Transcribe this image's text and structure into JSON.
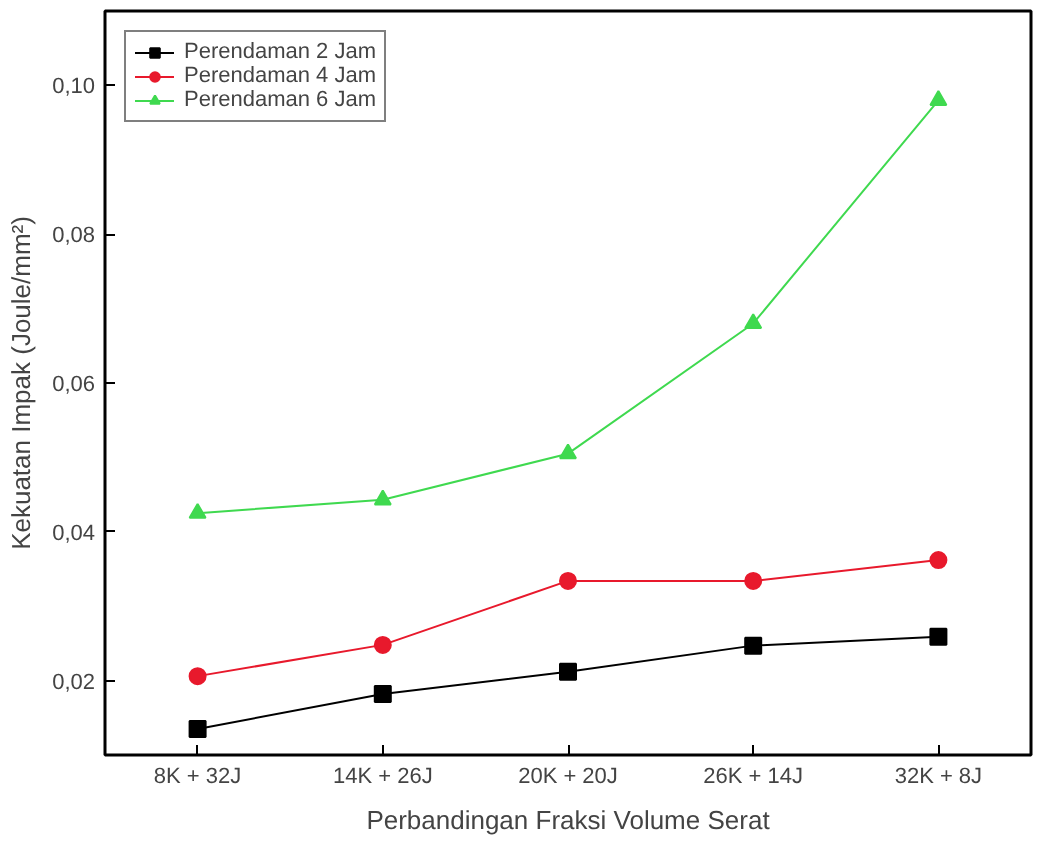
{
  "chart_data": {
    "type": "line",
    "xlabel": "Perbandingan Fraksi Volume Serat",
    "ylabel": "Kekuatan Impak (Joule/mm²)",
    "categories": [
      "8K + 32J",
      "14K + 26J",
      "20K + 20J",
      "26K + 14J",
      "32K + 8J"
    ],
    "ylim": [
      0.01,
      0.11
    ],
    "yticks": [
      {
        "value": 0.02,
        "label": "0,02"
      },
      {
        "value": 0.04,
        "label": "0,04"
      },
      {
        "value": 0.06,
        "label": "0,06"
      },
      {
        "value": 0.08,
        "label": "0,08"
      },
      {
        "value": 0.1,
        "label": "0,10"
      }
    ],
    "legend": "top left",
    "grid": false,
    "series": [
      {
        "name": "Perendaman 2 Jam",
        "color": "#000000",
        "marker": "square",
        "values": [
          0.0135,
          0.0182,
          0.0212,
          0.0247,
          0.0259
        ]
      },
      {
        "name": "Perendaman 4 Jam",
        "color": "#e8192c",
        "marker": "circle",
        "values": [
          0.0206,
          0.0248,
          0.0334,
          0.0334,
          0.0362
        ]
      },
      {
        "name": "Perendaman 6 Jam",
        "color": "#3fd94f",
        "marker": "triangle",
        "values": [
          0.0425,
          0.0443,
          0.0505,
          0.068,
          0.098
        ]
      }
    ]
  }
}
